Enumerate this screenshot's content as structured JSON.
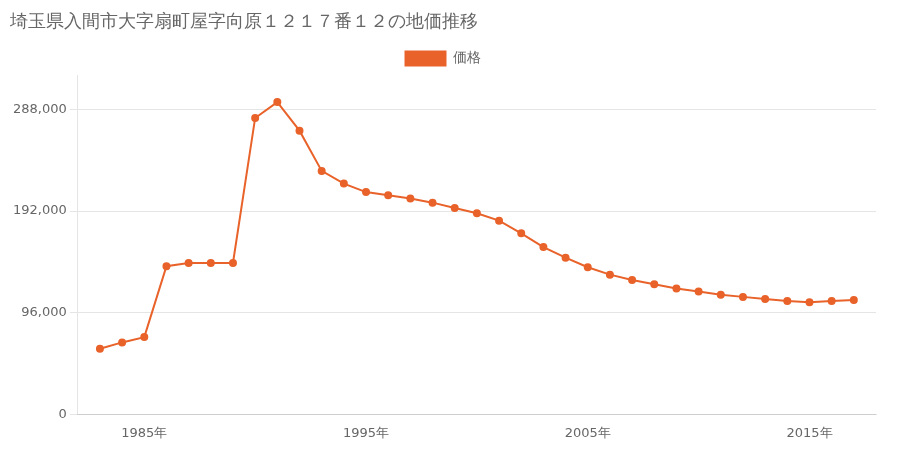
{
  "chart_data": {
    "type": "line",
    "title": "埼玉県入間市大字扇町屋字向原１２１７番１２の地価推移",
    "x": [
      1983,
      1984,
      1985,
      1986,
      1987,
      1988,
      1989,
      1990,
      1991,
      1992,
      1993,
      1994,
      1995,
      1996,
      1997,
      1998,
      1999,
      2000,
      2001,
      2002,
      2003,
      2004,
      2005,
      2006,
      2007,
      2008,
      2009,
      2010,
      2011,
      2012,
      2013,
      2014,
      2015,
      2016,
      2017
    ],
    "series": [
      {
        "name": "価格",
        "color": "#e8622a",
        "marker": "circle",
        "values": [
          62000,
          68000,
          73000,
          140000,
          143000,
          143000,
          143000,
          280000,
          295000,
          268000,
          230000,
          218000,
          210000,
          207000,
          204000,
          200000,
          195000,
          190000,
          183000,
          171000,
          158000,
          148000,
          139000,
          132000,
          127000,
          123000,
          119000,
          116000,
          113000,
          111000,
          109000,
          107000,
          106000,
          107000,
          108000
        ]
      }
    ],
    "xlim": [
      1982,
      2018
    ],
    "xticks": [
      {
        "value": 1985,
        "label": "1985年"
      },
      {
        "value": 1995,
        "label": "1995年"
      },
      {
        "value": 2005,
        "label": "2005年"
      },
      {
        "value": 2015,
        "label": "2015年"
      }
    ],
    "ylim": [
      0,
      320000
    ],
    "yticks": [
      0,
      {
        "value": 96000,
        "label": "96,000"
      },
      {
        "value": 192000,
        "label": "192,000"
      },
      {
        "value": 288000,
        "label": "288,000"
      }
    ],
    "grid": "y",
    "legend": "top"
  }
}
